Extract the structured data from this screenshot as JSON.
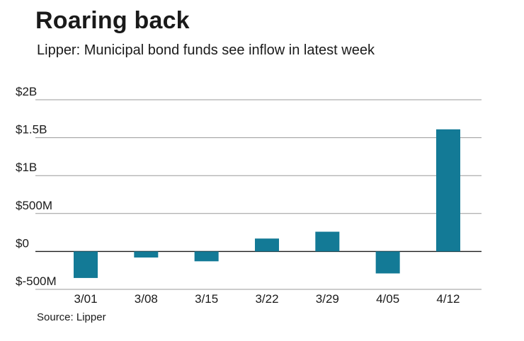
{
  "title": "Roaring back",
  "subtitle": "Lipper: Municipal bond funds see inflow in latest week",
  "source": "Source: Lipper",
  "chart_data": {
    "type": "bar",
    "categories": [
      "3/01",
      "3/08",
      "3/15",
      "3/22",
      "3/29",
      "4/05",
      "4/12"
    ],
    "values": [
      -350000000,
      -80000000,
      -130000000,
      170000000,
      260000000,
      -290000000,
      1610000000
    ],
    "ylim": [
      -500000000,
      2000000000
    ],
    "yticks": [
      {
        "value": 2000000000,
        "label": "$2B"
      },
      {
        "value": 1500000000,
        "label": "$1.5B"
      },
      {
        "value": 1000000000,
        "label": "$1B"
      },
      {
        "value": 500000000,
        "label": "$500M"
      },
      {
        "value": 0,
        "label": "$0"
      },
      {
        "value": -500000000,
        "label": "$-500M"
      }
    ],
    "grid": true,
    "bar_color": "#137a96",
    "grid_color": "#1a1a1a"
  }
}
